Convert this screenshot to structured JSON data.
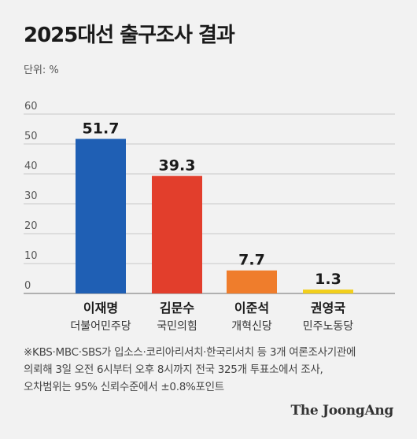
{
  "title": "2025대선 출구조사 결과",
  "unit_label": "단위: %",
  "chart_data": {
    "type": "bar",
    "ylim": [
      0,
      60
    ],
    "yticks": [
      0,
      10,
      20,
      30,
      40,
      50,
      60
    ],
    "grid": true,
    "categories": [
      "이재명",
      "김문수",
      "이준석",
      "권영국"
    ],
    "parties": [
      "더불어민주당",
      "국민의힘",
      "개혁신당",
      "민주노동당"
    ],
    "values": [
      51.7,
      39.3,
      7.7,
      1.3
    ],
    "value_labels": [
      "51.7",
      "39.3",
      "7.7",
      "1.3"
    ],
    "colors": [
      "#1f5fb4",
      "#e23e2c",
      "#ef7d2c",
      "#f2cf1c"
    ]
  },
  "notes": [
    "※KBS·MBC·SBS가 입소스·코리아리서치·한국리서치 등 3개 여론조사기관에",
    "의뢰해 3일 오전 6시부터 오후 8시까지 전국 325개 투표소에서 조사,",
    "오차범위는 95% 신뢰수준에서 ±0.8%포인트"
  ],
  "brand": "The JoongAng"
}
